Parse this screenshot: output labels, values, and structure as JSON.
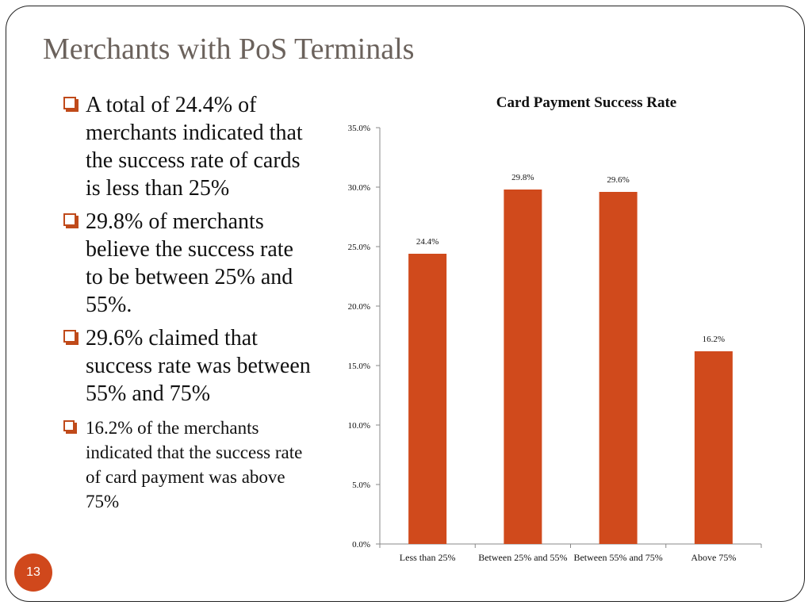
{
  "slide": {
    "title": "Merchants with PoS Terminals",
    "page_number": "13",
    "accent_color": "#d0481c"
  },
  "bullets": [
    "A total of 24.4% of merchants indicated that the success rate of cards is less than 25%",
    "29.8% of merchants believe the success rate to be between 25% and 55%.",
    "29.6% claimed that success rate was between 55% and 75%",
    "16.2% of the merchants indicated that the success rate of card payment was above 75%"
  ],
  "chart_data": {
    "type": "bar",
    "title": "Card Payment Success Rate",
    "xlabel": "",
    "ylabel": "",
    "categories": [
      "Less than 25%",
      "Between 25% and 55%",
      "Between 55% and 75%",
      "Above 75%"
    ],
    "values": [
      24.4,
      29.8,
      29.6,
      16.2
    ],
    "data_labels": [
      "24.4%",
      "29.8%",
      "29.6%",
      "16.2%"
    ],
    "ylim": [
      0,
      35
    ],
    "y_ticks": [
      "0.0%",
      "5.0%",
      "10.0%",
      "15.0%",
      "20.0%",
      "25.0%",
      "30.0%",
      "35.0%"
    ],
    "bar_color": "#d04a1c",
    "grid": false,
    "legend": false
  }
}
